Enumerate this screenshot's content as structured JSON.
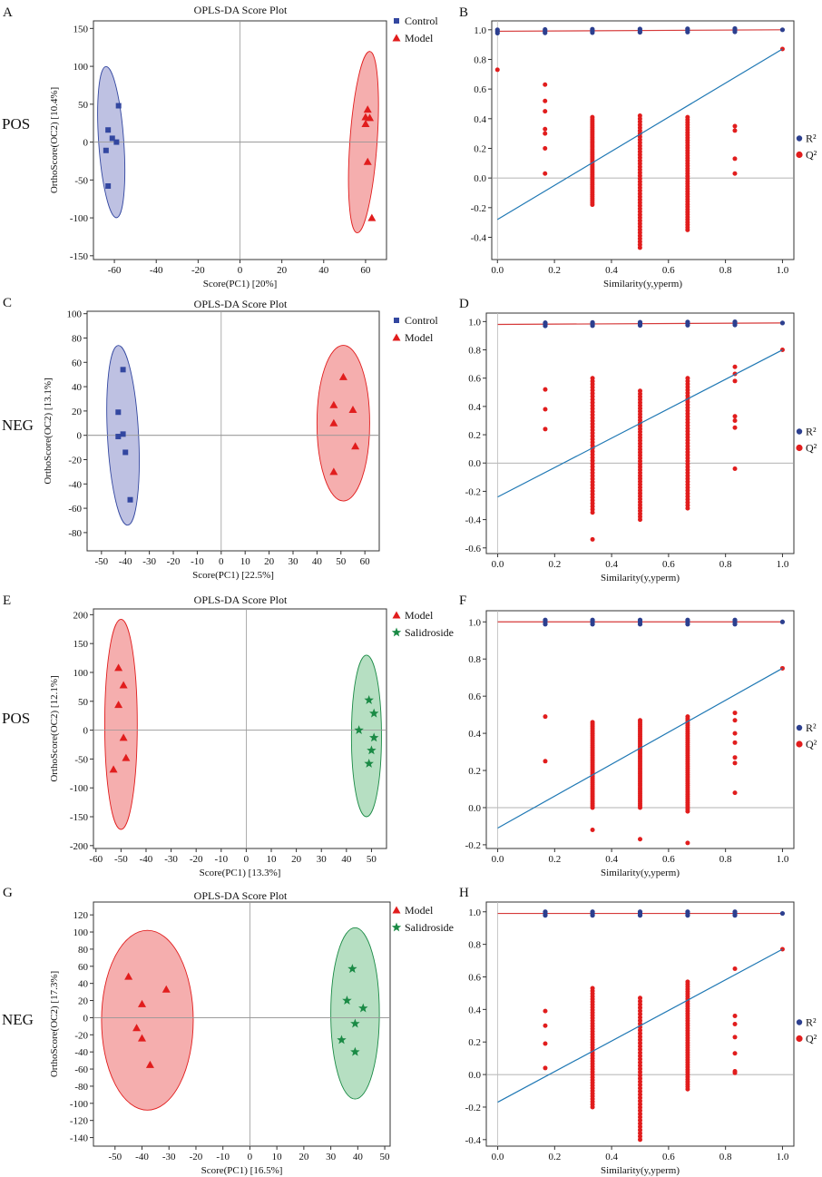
{
  "figure": {
    "ion_labels": [
      "POS",
      "NEG",
      "POS",
      "NEG"
    ]
  },
  "chart_data": [
    {
      "panel": "A",
      "type": "scatter",
      "title": "OPLS-DA Score Plot",
      "xlabel": "Score(PC1) [20%]",
      "ylabel": "OrthoScore(OC2) [10.4%]",
      "xlim": [
        -70,
        70
      ],
      "ylim": [
        -155,
        160
      ],
      "xticks": [
        -60,
        -40,
        -20,
        0,
        20,
        40,
        60
      ],
      "yticks": [
        -150,
        -100,
        -50,
        0,
        50,
        100,
        150
      ],
      "series": [
        {
          "name": "Control",
          "marker": "square",
          "color": "#3347a0",
          "fill": "#b3b6dd",
          "points": [
            [
              -58,
              48
            ],
            [
              -63,
              16
            ],
            [
              -61,
              5
            ],
            [
              -59,
              0
            ],
            [
              -64,
              -11
            ],
            [
              -63,
              -58
            ]
          ],
          "ellipse": {
            "cx": -61.5,
            "cy": 0,
            "rx": 6,
            "ry": 100,
            "angle": -4
          }
        },
        {
          "name": "Model",
          "marker": "triangle",
          "color": "#e11d1d",
          "fill": "#f3a0a0",
          "points": [
            [
              61,
              43
            ],
            [
              60,
              33
            ],
            [
              62,
              32
            ],
            [
              60,
              24
            ],
            [
              61,
              -26
            ],
            [
              63,
              -100
            ]
          ],
          "ellipse": {
            "cx": 59,
            "cy": 0,
            "rx": 6.5,
            "ry": 120,
            "angle": 4
          }
        }
      ]
    },
    {
      "panel": "B",
      "type": "scatter",
      "title": "",
      "xlabel": "Similarity(y,yperm)",
      "ylabel": "",
      "xlim": [
        -0.02,
        1.04
      ],
      "ylim": [
        -0.55,
        1.06
      ],
      "xticks": [
        0.0,
        0.2,
        0.4,
        0.6,
        0.8,
        1.0
      ],
      "yticks": [
        -0.4,
        -0.2,
        0.0,
        0.2,
        0.4,
        0.6,
        0.8,
        1.0
      ],
      "legend": [
        "R²",
        "Q²"
      ],
      "r2_intercept": 0.99,
      "r2_final": 1.0,
      "q2_intercept": -0.28,
      "q2_final": 0.87,
      "q2_points": [
        [
          0.0,
          0.73
        ],
        [
          0.167,
          0.63
        ],
        [
          0.167,
          0.52
        ],
        [
          0.167,
          0.45
        ],
        [
          0.167,
          0.33
        ],
        [
          0.167,
          0.3
        ],
        [
          0.167,
          0.2
        ],
        [
          0.167,
          0.03
        ],
        [
          0.833,
          0.35
        ],
        [
          0.833,
          0.32
        ],
        [
          0.833,
          0.13
        ],
        [
          0.833,
          0.03
        ],
        [
          1.0,
          0.87
        ]
      ],
      "q2_columns": [
        {
          "x": 0.333,
          "min": -0.18,
          "max": 0.41
        },
        {
          "x": 0.5,
          "min": -0.47,
          "max": 0.42
        },
        {
          "x": 0.667,
          "min": -0.35,
          "max": 0.41
        }
      ]
    },
    {
      "panel": "C",
      "type": "scatter",
      "title": "OPLS-DA Score Plot",
      "xlabel": "Score(PC1) [22.5%]",
      "ylabel": "OrthoScore(OC2) [13.1%]",
      "xlim": [
        -56,
        66
      ],
      "ylim": [
        -95,
        102
      ],
      "xticks": [
        -50,
        -40,
        -30,
        -20,
        -10,
        0,
        10,
        20,
        30,
        40,
        50,
        60
      ],
      "yticks": [
        -80,
        -60,
        -40,
        -20,
        0,
        20,
        40,
        60,
        80,
        100
      ],
      "series": [
        {
          "name": "Control",
          "marker": "square",
          "color": "#3347a0",
          "fill": "#b3b6dd",
          "points": [
            [
              -41,
              54
            ],
            [
              -43,
              19
            ],
            [
              -41,
              1
            ],
            [
              -43,
              -1
            ],
            [
              -40,
              -14
            ],
            [
              -38,
              -53
            ]
          ],
          "ellipse": {
            "cx": -41,
            "cy": 0,
            "rx": 6.5,
            "ry": 74,
            "angle": -3
          }
        },
        {
          "name": "Model",
          "marker": "triangle",
          "color": "#e11d1d",
          "fill": "#f3a0a0",
          "points": [
            [
              51,
              48
            ],
            [
              47,
              25
            ],
            [
              55,
              21
            ],
            [
              47,
              10
            ],
            [
              56,
              -9
            ],
            [
              47,
              -30
            ]
          ],
          "ellipse": {
            "cx": 51,
            "cy": 10,
            "rx": 11,
            "ry": 64,
            "angle": 0
          }
        }
      ]
    },
    {
      "panel": "D",
      "type": "scatter",
      "title": "",
      "xlabel": "Similarity(y,yperm)",
      "ylabel": "",
      "xlim": [
        -0.04,
        1.04
      ],
      "ylim": [
        -0.64,
        1.06
      ],
      "xticks": [
        0.0,
        0.2,
        0.4,
        0.6,
        0.8,
        1.0
      ],
      "yticks": [
        -0.6,
        -0.4,
        -0.2,
        0.0,
        0.2,
        0.4,
        0.6,
        0.8,
        1.0
      ],
      "legend": [
        "R²",
        "Q²"
      ],
      "r2_intercept": 0.98,
      "r2_final": 0.99,
      "q2_intercept": -0.24,
      "q2_final": 0.8,
      "q2_points": [
        [
          0.167,
          0.52
        ],
        [
          0.167,
          0.38
        ],
        [
          0.167,
          0.24
        ],
        [
          0.833,
          0.68
        ],
        [
          0.833,
          0.63
        ],
        [
          0.833,
          0.58
        ],
        [
          0.833,
          0.33
        ],
        [
          0.833,
          0.3
        ],
        [
          0.833,
          0.25
        ],
        [
          0.833,
          -0.04
        ],
        [
          1.0,
          0.8
        ],
        [
          0.333,
          -0.54
        ]
      ],
      "q2_columns": [
        {
          "x": 0.333,
          "min": -0.35,
          "max": 0.6
        },
        {
          "x": 0.5,
          "min": -0.4,
          "max": 0.51
        },
        {
          "x": 0.667,
          "min": -0.32,
          "max": 0.6
        }
      ]
    },
    {
      "panel": "E",
      "type": "scatter",
      "title": "OPLS-DA Score Plot",
      "xlabel": "Score(PC1) [13.3%]",
      "ylabel": "OrthoScore(OC2) [12.1%]",
      "xlim": [
        -61,
        56
      ],
      "ylim": [
        -205,
        210
      ],
      "xticks": [
        -60,
        -50,
        -40,
        -30,
        -20,
        -10,
        0,
        10,
        20,
        30,
        40,
        50
      ],
      "yticks": [
        -200,
        -150,
        -100,
        -50,
        0,
        50,
        100,
        150,
        200
      ],
      "series": [
        {
          "name": "Model",
          "marker": "triangle",
          "color": "#e11d1d",
          "fill": "#f3a0a0",
          "points": [
            [
              -51,
              108
            ],
            [
              -49,
              78
            ],
            [
              -51,
              44
            ],
            [
              -49,
              -13
            ],
            [
              -48,
              -48
            ],
            [
              -53,
              -68
            ]
          ],
          "ellipse": {
            "cx": -50,
            "cy": 10,
            "rx": 6.5,
            "ry": 182,
            "angle": 0
          }
        },
        {
          "name": "Salidroside",
          "marker": "star",
          "color": "#1a8a45",
          "fill": "#a9d9b7",
          "points": [
            [
              49,
              52
            ],
            [
              51,
              29
            ],
            [
              45,
              0
            ],
            [
              51,
              -13
            ],
            [
              50,
              -35
            ],
            [
              49,
              -58
            ]
          ],
          "ellipse": {
            "cx": 48,
            "cy": -10,
            "rx": 6,
            "ry": 140,
            "angle": 0
          }
        }
      ]
    },
    {
      "panel": "F",
      "type": "scatter",
      "title": "",
      "xlabel": "Similarity(y,yperm)",
      "ylabel": "",
      "xlim": [
        -0.04,
        1.04
      ],
      "ylim": [
        -0.22,
        1.06
      ],
      "xticks": [
        0.0,
        0.2,
        0.4,
        0.6,
        0.8,
        1.0
      ],
      "yticks": [
        -0.2,
        0.0,
        0.2,
        0.4,
        0.6,
        0.8,
        1.0
      ],
      "legend": [
        "R²",
        "Q²"
      ],
      "r2_intercept": 1.0,
      "r2_final": 1.0,
      "q2_intercept": -0.11,
      "q2_final": 0.75,
      "q2_points": [
        [
          0.167,
          0.49
        ],
        [
          0.167,
          0.25
        ],
        [
          0.833,
          0.51
        ],
        [
          0.833,
          0.47
        ],
        [
          0.833,
          0.4
        ],
        [
          0.833,
          0.35
        ],
        [
          0.833,
          0.27
        ],
        [
          0.833,
          0.24
        ],
        [
          0.833,
          0.08
        ],
        [
          0.333,
          -0.12
        ],
        [
          0.5,
          -0.17
        ],
        [
          0.667,
          -0.19
        ],
        [
          1.0,
          0.75
        ]
      ],
      "q2_columns": [
        {
          "x": 0.333,
          "min": 0.0,
          "max": 0.46
        },
        {
          "x": 0.5,
          "min": 0.0,
          "max": 0.47
        },
        {
          "x": 0.667,
          "min": -0.02,
          "max": 0.49
        }
      ]
    },
    {
      "panel": "G",
      "type": "scatter",
      "title": "OPLS-DA Score Plot",
      "xlabel": "Score(PC1) [16.5%]",
      "ylabel": "OrthoScore(OC2) [17.3%]",
      "xlim": [
        -58,
        52
      ],
      "ylim": [
        -150,
        135
      ],
      "xticks": [
        -50,
        -40,
        -30,
        -20,
        -10,
        0,
        10,
        20,
        30,
        40,
        50
      ],
      "yticks": [
        -140,
        -120,
        -100,
        -80,
        -60,
        -40,
        -20,
        0,
        20,
        40,
        60,
        80,
        100,
        120
      ],
      "series": [
        {
          "name": "Model",
          "marker": "triangle",
          "color": "#e11d1d",
          "fill": "#f3a0a0",
          "points": [
            [
              -45,
              48
            ],
            [
              -31,
              33
            ],
            [
              -40,
              16
            ],
            [
              -42,
              -12
            ],
            [
              -40,
              -24
            ],
            [
              -37,
              -55
            ]
          ],
          "ellipse": {
            "cx": -38,
            "cy": -3,
            "rx": 17,
            "ry": 105,
            "angle": 0
          }
        },
        {
          "name": "Salidroside",
          "marker": "star",
          "color": "#1a8a45",
          "fill": "#a9d9b7",
          "points": [
            [
              38,
              57
            ],
            [
              36,
              20
            ],
            [
              42,
              11
            ],
            [
              39,
              -7
            ],
            [
              34,
              -26
            ],
            [
              39,
              -40
            ]
          ],
          "ellipse": {
            "cx": 39,
            "cy": 5,
            "rx": 9,
            "ry": 100,
            "angle": 0
          }
        }
      ]
    },
    {
      "panel": "H",
      "type": "scatter",
      "title": "",
      "xlabel": "Similarity(y,yperm)",
      "ylabel": "",
      "xlim": [
        -0.04,
        1.04
      ],
      "ylim": [
        -0.44,
        1.06
      ],
      "xticks": [
        0.0,
        0.2,
        0.4,
        0.6,
        0.8,
        1.0
      ],
      "yticks": [
        -0.4,
        -0.2,
        0.0,
        0.2,
        0.4,
        0.6,
        0.8,
        1.0
      ],
      "legend": [
        "R²",
        "Q²"
      ],
      "r2_intercept": 0.99,
      "r2_final": 0.99,
      "q2_intercept": -0.17,
      "q2_final": 0.77,
      "q2_points": [
        [
          0.167,
          0.39
        ],
        [
          0.167,
          0.3
        ],
        [
          0.167,
          0.19
        ],
        [
          0.167,
          0.04
        ],
        [
          0.833,
          0.65
        ],
        [
          0.833,
          0.36
        ],
        [
          0.833,
          0.31
        ],
        [
          0.833,
          0.23
        ],
        [
          0.833,
          0.13
        ],
        [
          0.833,
          0.02
        ],
        [
          0.833,
          0.01
        ],
        [
          1.0,
          0.77
        ]
      ],
      "q2_columns": [
        {
          "x": 0.333,
          "min": -0.2,
          "max": 0.53
        },
        {
          "x": 0.5,
          "min": -0.4,
          "max": 0.47
        },
        {
          "x": 0.667,
          "min": -0.09,
          "max": 0.57
        }
      ]
    }
  ]
}
